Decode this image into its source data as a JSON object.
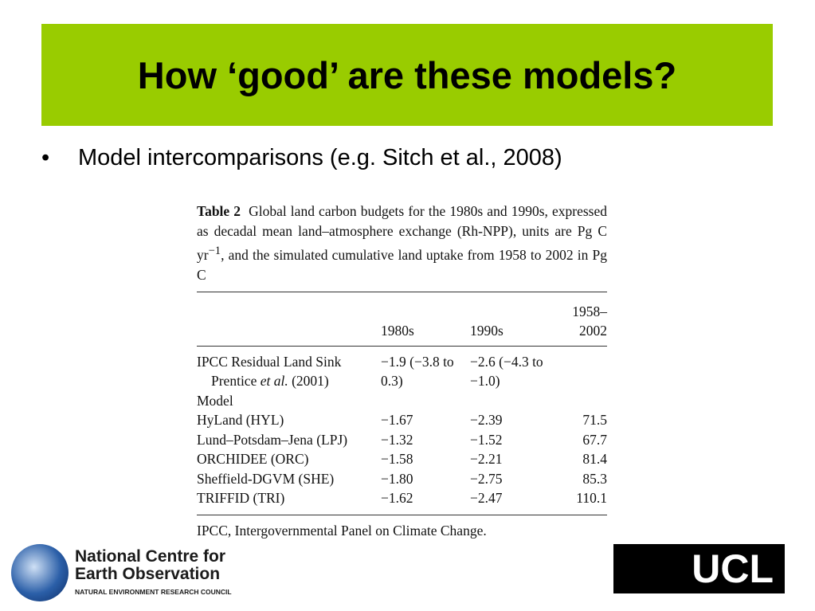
{
  "header": {
    "title": "How ‘good’ are these models?"
  },
  "bullets": [
    "Model intercomparisons (e.g. Sitch et al., 2008)"
  ],
  "table": {
    "label": "Table 2",
    "caption": [
      "Global land carbon budgets for the 1980s and 1990s, expressed as decadal mean land–atmosphere exchange (Rh-NPP), units are Pg C yr",
      "−1",
      ", and the simulated cumulative land uptake from 1958 to 2002 in Pg C"
    ],
    "columns": [
      "1980s",
      "1990s",
      "1958–2002"
    ],
    "rows": [
      {
        "name": "IPCC Residual Land Sink",
        "note": [
          "Prentice ",
          "et al.",
          " (2001)"
        ],
        "values": [
          "−1.9 (−3.8 to 0.3)",
          "−2.6 (−4.3 to −1.0)"
        ]
      },
      {
        "name": "Model"
      },
      {
        "name": "HyLand (HYL)",
        "values": [
          "−1.67",
          "−2.39",
          "71.5"
        ]
      },
      {
        "name": "Lund–Potsdam–Jena (LPJ)",
        "values": [
          "−1.32",
          "−1.52",
          "67.7"
        ]
      },
      {
        "name": "ORCHIDEE (ORC)",
        "values": [
          "−1.58",
          "−2.21",
          "81.4"
        ]
      },
      {
        "name": "Sheffield-DGVM (SHE)",
        "values": [
          "−1.80",
          "−2.75",
          "85.3"
        ]
      },
      {
        "name": "TRIFFID (TRI)",
        "values": [
          "−1.62",
          "−2.47",
          "110.1"
        ]
      }
    ],
    "footnote": "IPCC, Intergovernmental Panel on Climate Change."
  },
  "logos": {
    "nceo": [
      "National Centre for",
      "Earth Observation",
      "NATURAL ENVIRONMENT RESEARCH COUNCIL"
    ],
    "ucl": "UCL"
  }
}
